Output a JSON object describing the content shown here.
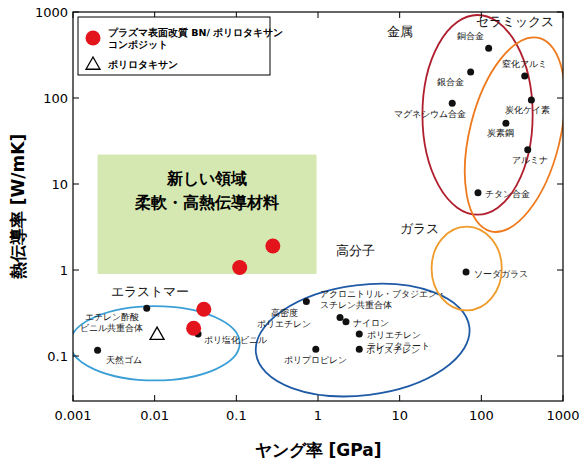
{
  "chart_data": {
    "type": "scatter",
    "x_label": "ヤング率 [GPa]",
    "y_label": "熱伝導率 [W/mK]",
    "log": true,
    "xlim": [
      0.001,
      1000
    ],
    "ylim": [
      0.03,
      1000
    ],
    "xticks": [
      0.001,
      0.01,
      0.1,
      1,
      10,
      100,
      1000
    ],
    "yticks": [
      0.1,
      1,
      10,
      100,
      1000
    ],
    "legend": "upper left",
    "series": [
      {
        "name": "プラズマ表面改質 BN/ ポリロタキサン コンポジット",
        "color": "#e3141c",
        "marker": "circle",
        "x": [
          0.11,
          0.28,
          0.04,
          0.03
        ],
        "values": [
          1.07,
          1.9,
          0.35,
          0.21
        ]
      },
      {
        "name": "ポリロタキサン",
        "color": "#000000",
        "marker": "triangle",
        "x": [
          0.0107
        ],
        "values": [
          0.18
        ]
      },
      {
        "color": "#111111",
        "marker": "dot",
        "labels": [
          "エチレン酢酸\nビニル共重合体",
          "天然ゴム",
          "ポリ塩化ビニル",
          "高密度\nポリエチレン",
          "アクロニトリル・ブタジエン・\nスチレン共重合体",
          "ナイロン",
          "ポリエチレン\nテレフタラート",
          "ポリプロピレン",
          "ポリスチレン",
          "ソーダガラス",
          "銅合金",
          "銀合金",
          "マグネシウム合金",
          "チタン合金",
          "窒化アルミ",
          "炭化ケイ素",
          "炭素鋼",
          "アルミナ"
        ],
        "x": [
          0.008,
          0.002,
          0.034,
          0.72,
          1.86,
          2.2,
          3.2,
          0.94,
          3.2,
          65,
          123,
          74,
          44,
          91,
          340,
          410,
          200,
          370
        ],
        "values": [
          0.36,
          0.117,
          0.18,
          0.43,
          0.28,
          0.25,
          0.18,
          0.12,
          0.12,
          0.95,
          380,
          200,
          87,
          7.9,
          180,
          95,
          51,
          25
        ]
      }
    ],
    "regions": [
      {
        "label": "エラストマー",
        "color": "#3b9fd6",
        "x_range": [
          0.00092,
          0.11
        ],
        "y_range": [
          0.052,
          0.38
        ]
      },
      {
        "label": "高分子",
        "color": "#1f5aa6",
        "x_range": [
          0.17,
          73
        ],
        "y_range": [
          0.035,
          0.67
        ]
      },
      {
        "label": "ガラス",
        "color": "#ee9b2a",
        "x_range": [
          24.6,
          178
        ],
        "y_range": [
          0.34,
          3.2
        ]
      },
      {
        "label": "金属",
        "color": "#b01e2e",
        "x_range": [
          19,
          425
        ],
        "y_range": [
          4.4,
          923
        ]
      },
      {
        "label": "セラミックス",
        "color": "#ef7a1e",
        "x_range": [
          72,
          920
        ],
        "y_range": [
          2.6,
          540
        ]
      }
    ],
    "highlight": {
      "label": "新しい領域\n柔軟・高熱伝導材料",
      "color": "#d5e8b2",
      "x_range": [
        0.002,
        0.96
      ],
      "y_range": [
        0.9,
        22
      ]
    }
  }
}
